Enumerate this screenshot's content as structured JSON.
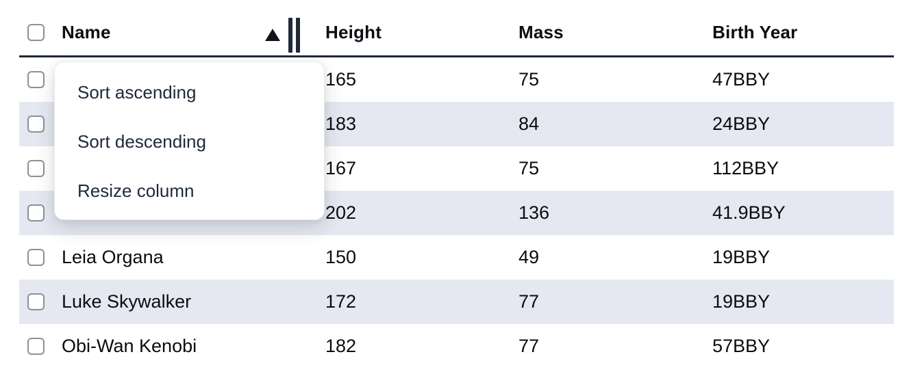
{
  "table": {
    "select_all_checkbox": {
      "checked": false
    },
    "columns": [
      {
        "id": "name",
        "label": "Name",
        "sort_indicator": "ascending"
      },
      {
        "id": "height",
        "label": "Height",
        "sort_indicator": null
      },
      {
        "id": "mass",
        "label": "Mass",
        "sort_indicator": null
      },
      {
        "id": "birth_year",
        "label": "Birth Year",
        "sort_indicator": null
      }
    ],
    "rows": [
      {
        "checked": false,
        "name": "",
        "height": "165",
        "mass": "75",
        "birth_year": "47BBY"
      },
      {
        "checked": false,
        "name": "",
        "height": "183",
        "mass": "84",
        "birth_year": "24BBY"
      },
      {
        "checked": false,
        "name": "",
        "height": "167",
        "mass": "75",
        "birth_year": "112BBY"
      },
      {
        "checked": false,
        "name": "",
        "height": "202",
        "mass": "136",
        "birth_year": "41.9BBY"
      },
      {
        "checked": false,
        "name": "Leia Organa",
        "height": "150",
        "mass": "49",
        "birth_year": "19BBY"
      },
      {
        "checked": false,
        "name": "Luke Skywalker",
        "height": "172",
        "mass": "77",
        "birth_year": "19BBY"
      },
      {
        "checked": false,
        "name": "Obi-Wan Kenobi",
        "height": "182",
        "mass": "77",
        "birth_year": "57BBY"
      }
    ]
  },
  "context_menu": {
    "items": [
      {
        "label": "Sort ascending"
      },
      {
        "label": "Sort descending"
      },
      {
        "label": "Resize column"
      }
    ]
  },
  "colors": {
    "header_border": "#1f2937",
    "row_stripe": "#e5e8f0",
    "cell_text": "#0b0c0e",
    "menu_text": "#1e2939",
    "menu_background": "#ffffff",
    "checkbox_border": "#8b9099"
  }
}
